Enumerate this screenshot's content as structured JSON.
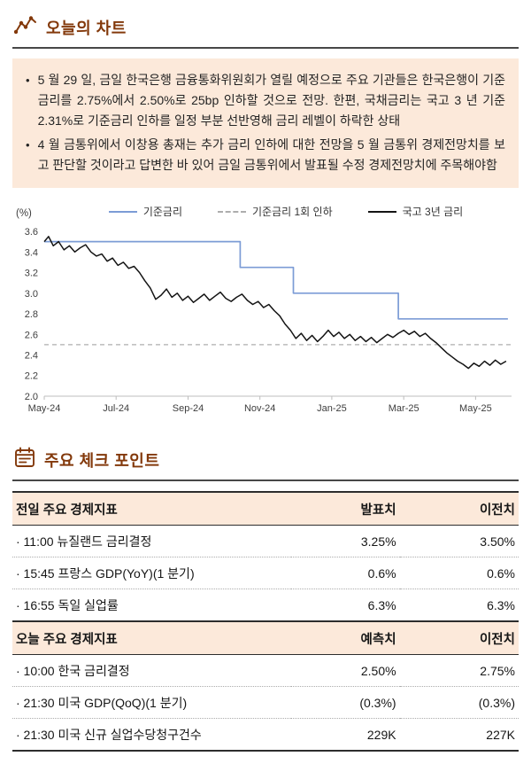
{
  "colors": {
    "accent": "#83390B",
    "panel_bg": "#FCE9DA",
    "base_rate_line": "#7C9CD6",
    "one_cut_line": "#ADADAD",
    "ktb_line": "#141414"
  },
  "icons": {
    "chart_section": "sparkline-chart-icon",
    "check_section": "calendar-icon"
  },
  "chart_section": {
    "title": "오늘의 차트",
    "bullet_marker": "•",
    "bullets": [
      "5 월 29 일, 금일 한국은행 금융통화위원회가 열릴 예정으로 주요 기관들은 한국은행이 기준금리를 2.75%에서 2.50%로 25bp 인하할 것으로 전망. 한편, 국채금리는 국고 3 년 기준 2.31%로 기준금리 인하를 일정 부분 선반영해 금리 레벨이 하락한 상태",
      "4 월 금통위에서 이창용 총재는 추가 금리 인하에 대한 전망을 5 월 금통위 경제전망치를 보고 판단할 것이라고 답변한 바 있어 금일 금통위에서 발표될 수정 경제전망치에 주목해야함"
    ]
  },
  "chart_data": {
    "type": "line",
    "unit_label": "(%)",
    "ylim": [
      2.0,
      3.6
    ],
    "yticks": [
      3.6,
      3.4,
      3.2,
      3.0,
      2.8,
      2.6,
      2.4,
      2.2,
      2.0
    ],
    "x_max": 13,
    "xticks": [
      "May-24",
      "Jul-24",
      "Sep-24",
      "Nov-24",
      "Jan-25",
      "Mar-25",
      "May-25"
    ],
    "grid": false,
    "legend_position": "top",
    "series": [
      {
        "name": "기준금리",
        "style": "step",
        "color": "#7C9CD6",
        "width": 1.7,
        "points": [
          [
            0,
            3.5
          ],
          [
            5.45,
            3.5
          ],
          [
            5.45,
            3.25
          ],
          [
            6.93,
            3.25
          ],
          [
            6.93,
            3.0
          ],
          [
            9.85,
            3.0
          ],
          [
            9.85,
            2.75
          ],
          [
            12.9,
            2.75
          ]
        ]
      },
      {
        "name": "기준금리 1회 인하",
        "style": "dashed",
        "color": "#ADADAD",
        "value": 2.5
      },
      {
        "name": "국고 3년 금리",
        "style": "line",
        "color": "#141414",
        "width": 1.5,
        "points": [
          [
            0,
            3.5
          ],
          [
            0.12,
            3.55
          ],
          [
            0.25,
            3.46
          ],
          [
            0.4,
            3.5
          ],
          [
            0.55,
            3.42
          ],
          [
            0.7,
            3.46
          ],
          [
            0.85,
            3.4
          ],
          [
            1.0,
            3.44
          ],
          [
            1.15,
            3.47
          ],
          [
            1.3,
            3.4
          ],
          [
            1.45,
            3.36
          ],
          [
            1.6,
            3.38
          ],
          [
            1.75,
            3.31
          ],
          [
            1.9,
            3.34
          ],
          [
            2.05,
            3.27
          ],
          [
            2.2,
            3.3
          ],
          [
            2.35,
            3.24
          ],
          [
            2.5,
            3.26
          ],
          [
            2.65,
            3.2
          ],
          [
            2.8,
            3.12
          ],
          [
            2.95,
            3.05
          ],
          [
            3.1,
            2.94
          ],
          [
            3.25,
            2.98
          ],
          [
            3.4,
            3.04
          ],
          [
            3.55,
            2.96
          ],
          [
            3.7,
            3.0
          ],
          [
            3.85,
            2.93
          ],
          [
            4.0,
            2.97
          ],
          [
            4.15,
            2.91
          ],
          [
            4.3,
            2.95
          ],
          [
            4.45,
            2.99
          ],
          [
            4.6,
            2.93
          ],
          [
            4.75,
            2.97
          ],
          [
            4.9,
            3.01
          ],
          [
            5.05,
            2.95
          ],
          [
            5.2,
            2.92
          ],
          [
            5.35,
            2.96
          ],
          [
            5.5,
            2.99
          ],
          [
            5.65,
            2.93
          ],
          [
            5.8,
            2.89
          ],
          [
            5.95,
            2.92
          ],
          [
            6.1,
            2.86
          ],
          [
            6.25,
            2.89
          ],
          [
            6.4,
            2.83
          ],
          [
            6.55,
            2.78
          ],
          [
            6.7,
            2.7
          ],
          [
            6.85,
            2.64
          ],
          [
            7.0,
            2.56
          ],
          [
            7.15,
            2.61
          ],
          [
            7.3,
            2.54
          ],
          [
            7.45,
            2.59
          ],
          [
            7.6,
            2.53
          ],
          [
            7.75,
            2.58
          ],
          [
            7.9,
            2.64
          ],
          [
            8.05,
            2.58
          ],
          [
            8.2,
            2.62
          ],
          [
            8.35,
            2.56
          ],
          [
            8.5,
            2.6
          ],
          [
            8.65,
            2.54
          ],
          [
            8.8,
            2.58
          ],
          [
            8.95,
            2.53
          ],
          [
            9.1,
            2.57
          ],
          [
            9.25,
            2.52
          ],
          [
            9.4,
            2.56
          ],
          [
            9.55,
            2.6
          ],
          [
            9.7,
            2.57
          ],
          [
            9.85,
            2.61
          ],
          [
            10.0,
            2.64
          ],
          [
            10.15,
            2.6
          ],
          [
            10.3,
            2.63
          ],
          [
            10.45,
            2.58
          ],
          [
            10.6,
            2.61
          ],
          [
            10.75,
            2.56
          ],
          [
            10.9,
            2.52
          ],
          [
            11.05,
            2.47
          ],
          [
            11.2,
            2.42
          ],
          [
            11.35,
            2.38
          ],
          [
            11.5,
            2.34
          ],
          [
            11.65,
            2.31
          ],
          [
            11.8,
            2.27
          ],
          [
            11.95,
            2.32
          ],
          [
            12.1,
            2.29
          ],
          [
            12.25,
            2.34
          ],
          [
            12.4,
            2.3
          ],
          [
            12.55,
            2.35
          ],
          [
            12.7,
            2.31
          ],
          [
            12.85,
            2.34
          ]
        ]
      }
    ]
  },
  "check_section": {
    "title": "주요 체크 포인트",
    "tables": [
      {
        "header": [
          "전일 주요 경제지표",
          "발표치",
          "이전치"
        ],
        "rows": [
          [
            "· 11:00 뉴질랜드 금리결정",
            "3.25%",
            "3.50%"
          ],
          [
            "· 15:45 프랑스 GDP(YoY)(1 분기)",
            "0.6%",
            "0.6%"
          ],
          [
            "· 16:55 독일 실업률",
            "6.3%",
            "6.3%"
          ]
        ]
      },
      {
        "header": [
          "오늘 주요 경제지표",
          "예측치",
          "이전치"
        ],
        "rows": [
          [
            "· 10:00 한국 금리결정",
            "2.50%",
            "2.75%"
          ],
          [
            "· 21:30 미국 GDP(QoQ)(1 분기)",
            "(0.3%)",
            "(0.3%)"
          ],
          [
            "· 21:30 미국 신규 실업수당청구건수",
            "229K",
            "227K"
          ]
        ]
      }
    ]
  }
}
